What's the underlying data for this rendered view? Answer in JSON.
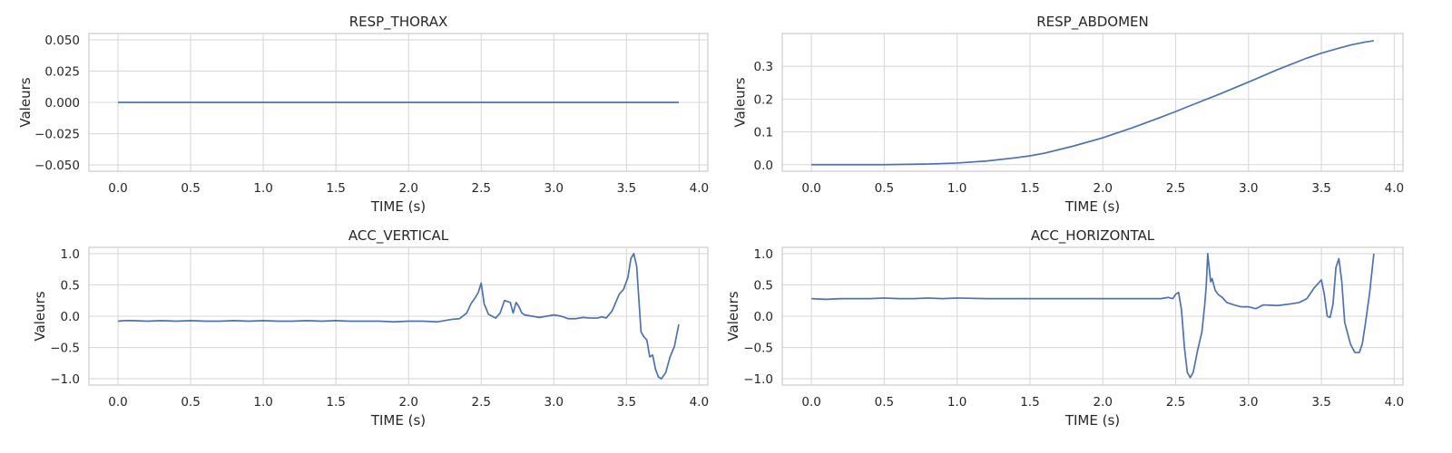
{
  "colors": {
    "series": "#4c72b0",
    "grid": "#d9d9d9",
    "frame": "#cccccc",
    "text": "#262626"
  },
  "chart_data": [
    {
      "type": "line",
      "title": "RESP_THORAX",
      "xlabel": "TIME (s)",
      "ylabel": "Valeurs",
      "xlim": [
        -0.2,
        4.06
      ],
      "ylim": [
        -0.055,
        0.055
      ],
      "xticks": [
        0.0,
        0.5,
        1.0,
        1.5,
        2.0,
        2.5,
        3.0,
        3.5,
        4.0
      ],
      "xtick_labels": [
        "0.0",
        "0.5",
        "1.0",
        "1.5",
        "2.0",
        "2.5",
        "3.0",
        "3.5",
        "4.0"
      ],
      "yticks": [
        -0.05,
        -0.025,
        0.0,
        0.025,
        0.05
      ],
      "ytick_labels": [
        "−0.050",
        "−0.025",
        "0.000",
        "0.025",
        "0.050"
      ],
      "grid": true,
      "series": [
        {
          "x": [
            0.0,
            3.86
          ],
          "y": [
            0.0,
            0.0
          ]
        }
      ]
    },
    {
      "type": "line",
      "title": "RESP_ABDOMEN",
      "xlabel": "TIME (s)",
      "ylabel": "Valeurs",
      "xlim": [
        -0.2,
        4.06
      ],
      "ylim": [
        -0.02,
        0.4
      ],
      "xticks": [
        0.0,
        0.5,
        1.0,
        1.5,
        2.0,
        2.5,
        3.0,
        3.5,
        4.0
      ],
      "xtick_labels": [
        "0.0",
        "0.5",
        "1.0",
        "1.5",
        "2.0",
        "2.5",
        "3.0",
        "3.5",
        "4.0"
      ],
      "yticks": [
        0.0,
        0.1,
        0.2,
        0.3
      ],
      "ytick_labels": [
        "0.0",
        "0.1",
        "0.2",
        "0.3"
      ],
      "grid": true,
      "series": [
        {
          "x": [
            0.0,
            0.5,
            0.8,
            1.0,
            1.2,
            1.4,
            1.5,
            1.6,
            1.8,
            2.0,
            2.2,
            2.4,
            2.5,
            2.6,
            2.8,
            3.0,
            3.2,
            3.4,
            3.5,
            3.6,
            3.7,
            3.8,
            3.86
          ],
          "y": [
            0.0,
            0.0,
            0.002,
            0.005,
            0.011,
            0.021,
            0.027,
            0.035,
            0.057,
            0.082,
            0.112,
            0.145,
            0.162,
            0.18,
            0.215,
            0.252,
            0.29,
            0.325,
            0.34,
            0.353,
            0.365,
            0.374,
            0.378
          ]
        }
      ]
    },
    {
      "type": "line",
      "title": "ACC_VERTICAL",
      "xlabel": "TIME (s)",
      "ylabel": "Valeurs",
      "xlim": [
        -0.2,
        4.06
      ],
      "ylim": [
        -1.1,
        1.1
      ],
      "xticks": [
        0.0,
        0.5,
        1.0,
        1.5,
        2.0,
        2.5,
        3.0,
        3.5,
        4.0
      ],
      "xtick_labels": [
        "0.0",
        "0.5",
        "1.0",
        "1.5",
        "2.0",
        "2.5",
        "3.0",
        "3.5",
        "4.0"
      ],
      "yticks": [
        -1.0,
        -0.5,
        0.0,
        0.5,
        1.0
      ],
      "ytick_labels": [
        "−1.0",
        "−0.5",
        "0.0",
        "0.5",
        "1.0"
      ],
      "grid": true,
      "series": [
        {
          "x": [
            0.0,
            0.05,
            0.1,
            0.2,
            0.3,
            0.4,
            0.5,
            0.6,
            0.7,
            0.8,
            0.9,
            1.0,
            1.1,
            1.2,
            1.3,
            1.4,
            1.5,
            1.6,
            1.7,
            1.8,
            1.9,
            2.0,
            2.1,
            2.2,
            2.25,
            2.3,
            2.35,
            2.4,
            2.43,
            2.46,
            2.48,
            2.5,
            2.52,
            2.55,
            2.6,
            2.63,
            2.66,
            2.7,
            2.72,
            2.74,
            2.76,
            2.78,
            2.8,
            2.85,
            2.9,
            2.95,
            3.0,
            3.05,
            3.1,
            3.15,
            3.2,
            3.25,
            3.3,
            3.33,
            3.36,
            3.4,
            3.45,
            3.48,
            3.51,
            3.53,
            3.55,
            3.57,
            3.59,
            3.6,
            3.62,
            3.64,
            3.66,
            3.68,
            3.7,
            3.72,
            3.74,
            3.77,
            3.8,
            3.83,
            3.86
          ],
          "y": [
            -0.08,
            -0.07,
            -0.07,
            -0.08,
            -0.07,
            -0.08,
            -0.07,
            -0.08,
            -0.08,
            -0.07,
            -0.08,
            -0.07,
            -0.08,
            -0.08,
            -0.07,
            -0.08,
            -0.07,
            -0.08,
            -0.08,
            -0.08,
            -0.09,
            -0.08,
            -0.08,
            -0.09,
            -0.07,
            -0.05,
            -0.04,
            0.05,
            0.2,
            0.3,
            0.38,
            0.53,
            0.2,
            0.03,
            -0.03,
            0.05,
            0.25,
            0.22,
            0.05,
            0.22,
            0.15,
            0.05,
            0.02,
            0.0,
            -0.02,
            0.0,
            0.02,
            0.0,
            -0.04,
            -0.04,
            -0.02,
            -0.03,
            -0.03,
            -0.01,
            -0.03,
            0.08,
            0.35,
            0.43,
            0.62,
            0.92,
            1.0,
            0.8,
            0.1,
            -0.25,
            -0.33,
            -0.38,
            -0.65,
            -0.62,
            -0.85,
            -0.97,
            -1.0,
            -0.9,
            -0.65,
            -0.48,
            -0.13
          ]
        }
      ]
    },
    {
      "type": "line",
      "title": "ACC_HORIZONTAL",
      "xlabel": "TIME (s)",
      "ylabel": "Valeurs",
      "xlim": [
        -0.2,
        4.06
      ],
      "ylim": [
        -1.1,
        1.1
      ],
      "xticks": [
        0.0,
        0.5,
        1.0,
        1.5,
        2.0,
        2.5,
        3.0,
        3.5,
        4.0
      ],
      "xtick_labels": [
        "0.0",
        "0.5",
        "1.0",
        "1.5",
        "2.0",
        "2.5",
        "3.0",
        "3.5",
        "4.0"
      ],
      "yticks": [
        -1.0,
        -0.5,
        0.0,
        0.5,
        1.0
      ],
      "ytick_labels": [
        "−1.0",
        "−0.5",
        "0.0",
        "0.5",
        "1.0"
      ],
      "grid": true,
      "series": [
        {
          "x": [
            0.0,
            0.1,
            0.2,
            0.3,
            0.4,
            0.5,
            0.6,
            0.7,
            0.8,
            0.9,
            1.0,
            1.2,
            1.4,
            1.6,
            1.8,
            2.0,
            2.2,
            2.4,
            2.45,
            2.48,
            2.5,
            2.52,
            2.54,
            2.56,
            2.58,
            2.6,
            2.62,
            2.65,
            2.68,
            2.7,
            2.71,
            2.72,
            2.74,
            2.75,
            2.77,
            2.79,
            2.82,
            2.85,
            2.9,
            2.95,
            3.0,
            3.05,
            3.1,
            3.2,
            3.3,
            3.35,
            3.4,
            3.45,
            3.5,
            3.52,
            3.54,
            3.56,
            3.58,
            3.6,
            3.62,
            3.64,
            3.66,
            3.7,
            3.73,
            3.76,
            3.78,
            3.8,
            3.83,
            3.86
          ],
          "y": [
            0.28,
            0.27,
            0.28,
            0.28,
            0.28,
            0.29,
            0.28,
            0.28,
            0.29,
            0.28,
            0.29,
            0.28,
            0.28,
            0.28,
            0.28,
            0.28,
            0.28,
            0.28,
            0.3,
            0.28,
            0.35,
            0.38,
            0.1,
            -0.5,
            -0.9,
            -0.98,
            -0.9,
            -0.55,
            -0.25,
            0.2,
            0.5,
            1.0,
            0.55,
            0.6,
            0.42,
            0.35,
            0.3,
            0.22,
            0.18,
            0.15,
            0.15,
            0.12,
            0.18,
            0.17,
            0.2,
            0.22,
            0.28,
            0.45,
            0.58,
            0.35,
            0.0,
            -0.02,
            0.2,
            0.78,
            0.92,
            0.55,
            -0.1,
            -0.45,
            -0.58,
            -0.58,
            -0.45,
            -0.15,
            0.35,
            1.0
          ]
        }
      ]
    }
  ]
}
